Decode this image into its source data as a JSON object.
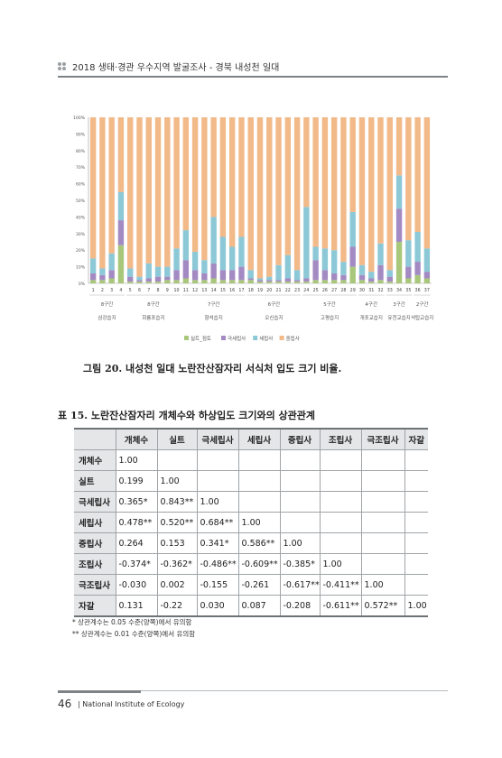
{
  "header": {
    "title": "2018 생태·경관 우수지역 발굴조사 - 경북 내성천 일대"
  },
  "figure": {
    "caption": "그림 20. 내성천 일대 노란잔산잠자리 서식처 입도 크기 비율."
  },
  "chart_data": {
    "type": "bar",
    "stacked": true,
    "categories": [
      "1",
      "2",
      "3",
      "4",
      "5",
      "6",
      "7",
      "8",
      "9",
      "10",
      "11",
      "12",
      "13",
      "14",
      "15",
      "16",
      "17",
      "18",
      "19",
      "20",
      "21",
      "22",
      "23",
      "24",
      "25",
      "26",
      "27",
      "28",
      "29",
      "30",
      "31",
      "32",
      "33",
      "34",
      "35",
      "36",
      "37"
    ],
    "y_ticks": [
      "0%",
      "10%",
      "20%",
      "30%",
      "40%",
      "50%",
      "60%",
      "70%",
      "80%",
      "90%",
      "100%"
    ],
    "ylim": [
      0,
      100
    ],
    "series": [
      {
        "name": "실트_점토",
        "color": "#a9c77a",
        "values": [
          2,
          2,
          3,
          23,
          1,
          1,
          1,
          1,
          2,
          2,
          3,
          2,
          2,
          3,
          2,
          2,
          2,
          2,
          1,
          1,
          1,
          1,
          1,
          1,
          2,
          2,
          2,
          2,
          10,
          2,
          1,
          2,
          1,
          25,
          3,
          5,
          3
        ]
      },
      {
        "name": "극세립사",
        "color": "#a38ac3",
        "values": [
          4,
          3,
          5,
          15,
          3,
          1,
          2,
          3,
          2,
          6,
          11,
          6,
          4,
          9,
          6,
          6,
          8,
          1,
          1,
          1,
          1,
          2,
          1,
          2,
          12,
          6,
          4,
          3,
          12,
          3,
          2,
          9,
          3,
          20,
          7,
          8,
          4
        ]
      },
      {
        "name": "세립사",
        "color": "#8cc8d6",
        "values": [
          9,
          4,
          10,
          17,
          5,
          2,
          9,
          6,
          6,
          13,
          18,
          11,
          8,
          28,
          20,
          14,
          18,
          5,
          1,
          2,
          9,
          14,
          6,
          43,
          8,
          13,
          14,
          8,
          21,
          6,
          4,
          13,
          4,
          20,
          16,
          18,
          14
        ]
      },
      {
        "name": "중립사",
        "color": "#f2b989",
        "values": [
          85,
          91,
          82,
          45,
          91,
          96,
          88,
          90,
          90,
          79,
          68,
          81,
          86,
          60,
          72,
          78,
          72,
          92,
          97,
          96,
          89,
          83,
          92,
          54,
          78,
          79,
          80,
          87,
          57,
          89,
          93,
          76,
          92,
          35,
          74,
          69,
          79
        ]
      }
    ],
    "groups": [
      {
        "order": "8구간",
        "name": "삼강습지"
      },
      {
        "order": "8구간",
        "name": "회룡포습지"
      },
      {
        "order": "7구간",
        "name": "향석습지"
      },
      {
        "order": "6구간",
        "name": "오신습지"
      },
      {
        "order": "5구간",
        "name": "고평습지"
      },
      {
        "order": "4구간",
        "name": "개포교습지"
      },
      {
        "order": "3구간",
        "name": "유천교습지"
      },
      {
        "order": "2구간",
        "name": "석탑교습지"
      }
    ],
    "legend": [
      "실트_점토",
      "극세립사",
      "세립사",
      "중립사"
    ],
    "legend_position": "bottom",
    "grid": false
  },
  "table": {
    "caption": "표 15. 노란잔산잠자리 개체수와 하상입도 크기와의 상관관계",
    "headers": [
      "",
      "개체수",
      "실트",
      "극세립사",
      "세립사",
      "중립사",
      "조립사",
      "극조립사",
      "자갈"
    ],
    "rows": [
      {
        "label": "개체수",
        "cells": [
          "1.00",
          "",
          "",
          "",
          "",
          "",
          "",
          ""
        ]
      },
      {
        "label": "실트",
        "cells": [
          "0.199",
          "1.00",
          "",
          "",
          "",
          "",
          "",
          ""
        ]
      },
      {
        "label": "극세립사",
        "cells": [
          "0.365*",
          "0.843**",
          "1.00",
          "",
          "",
          "",
          "",
          ""
        ]
      },
      {
        "label": "세립사",
        "cells": [
          "0.478**",
          "0.520**",
          "0.684**",
          "1.00",
          "",
          "",
          "",
          ""
        ]
      },
      {
        "label": "중립사",
        "cells": [
          "0.264",
          "0.153",
          "0.341*",
          "0.586**",
          "1.00",
          "",
          "",
          ""
        ]
      },
      {
        "label": "조립사",
        "cells": [
          "-0.374*",
          "-0.362*",
          "-0.486**",
          "-0.609**",
          "-0.385*",
          "1.00",
          "",
          ""
        ]
      },
      {
        "label": "극조립사",
        "cells": [
          "-0.030",
          "0.002",
          "-0.155",
          "-0.261",
          "-0.617**",
          "-0.411**",
          "1.00",
          ""
        ]
      },
      {
        "label": "자갈",
        "cells": [
          "0.131",
          "-0.22",
          "0.030",
          "0.087",
          "-0.208",
          "-0.611**",
          "0.572**",
          "1.00"
        ]
      }
    ],
    "notes": [
      "*   상관계수는 0.05 수준(양쪽)에서 유의함",
      "**  상관계수는 0.01 수준(양쪽)에서 유의함"
    ]
  },
  "footer": {
    "page_number": "46",
    "institution": "| National Institute of Ecology"
  }
}
